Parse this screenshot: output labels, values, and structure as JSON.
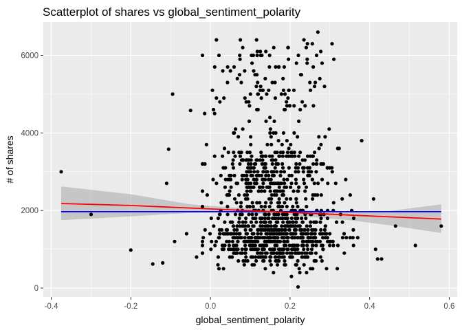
{
  "chart_data": {
    "type": "scatter",
    "title": "Scatterplot of shares vs global_sentiment_polarity",
    "xlabel": "global_sentiment_polarity",
    "ylabel": "# of shares",
    "xlim": [
      -0.42,
      0.62
    ],
    "ylim": [
      -230,
      6860
    ],
    "x_ticks": [
      -0.4,
      -0.2,
      0.0,
      0.2,
      0.4,
      0.6
    ],
    "x_tick_labels": [
      "-0.4",
      "-0.2",
      "0.0",
      "0.2",
      "0.4",
      "0.6"
    ],
    "y_ticks": [
      0,
      2000,
      4000,
      6000
    ],
    "y_tick_labels": [
      "0",
      "2000",
      "4000",
      "6000"
    ],
    "grid": true,
    "theme": {
      "panel_bg": "#ebebeb",
      "grid_major": "#ffffff",
      "point": "#000000"
    },
    "trend_lines": [
      {
        "method": "lm",
        "color": "#0000ff",
        "x": [
          -0.375,
          0.58
        ],
        "y": [
          1970,
          1970
        ]
      },
      {
        "method": "loess",
        "color": "#ff0000",
        "x": [
          -0.375,
          -0.2,
          0.0,
          0.2,
          0.4,
          0.58
        ],
        "y": [
          2180,
          2130,
          2040,
          1950,
          1860,
          1780
        ]
      }
    ],
    "confidence_band": {
      "color": "#999999",
      "x": [
        -0.375,
        -0.2,
        -0.05,
        0.05,
        0.2,
        0.35,
        0.45,
        0.58
      ],
      "lower": [
        1750,
        1850,
        1940,
        1950,
        1880,
        1750,
        1620,
        1420
      ],
      "upper": [
        2620,
        2420,
        2160,
        2080,
        2030,
        1980,
        1990,
        2160
      ]
    },
    "outliers": [
      {
        "x": -0.375,
        "y": 3000
      },
      {
        "x": -0.3,
        "y": 1900
      },
      {
        "x": -0.2,
        "y": 980
      },
      {
        "x": -0.145,
        "y": 620
      },
      {
        "x": -0.12,
        "y": 650
      },
      {
        "x": -0.11,
        "y": 2700
      },
      {
        "x": -0.105,
        "y": 3580
      },
      {
        "x": -0.09,
        "y": 1200
      },
      {
        "x": -0.095,
        "y": 5000
      },
      {
        "x": -0.06,
        "y": 1400
      },
      {
        "x": -0.05,
        "y": 4580
      },
      {
        "x": -0.035,
        "y": 800
      },
      {
        "x": -0.02,
        "y": 6000
      },
      {
        "x": -0.01,
        "y": 3700
      },
      {
        "x": 0.005,
        "y": 5100
      },
      {
        "x": 0.015,
        "y": 6400
      },
      {
        "x": 0.38,
        "y": 3800
      },
      {
        "x": 0.41,
        "y": 2300
      },
      {
        "x": 0.415,
        "y": 1000
      },
      {
        "x": 0.42,
        "y": 750
      },
      {
        "x": 0.43,
        "y": 750
      },
      {
        "x": 0.465,
        "y": 1600
      },
      {
        "x": 0.515,
        "y": 1100
      },
      {
        "x": 0.58,
        "y": 1600
      },
      {
        "x": 0.31,
        "y": 5900
      },
      {
        "x": 0.27,
        "y": 6600
      },
      {
        "x": 0.22,
        "y": 30
      },
      {
        "x": 0.34,
        "y": 2800
      },
      {
        "x": 0.355,
        "y": 2000
      },
      {
        "x": 0.36,
        "y": 1800
      },
      {
        "x": 0.305,
        "y": 3100
      },
      {
        "x": 0.32,
        "y": 3600
      }
    ],
    "cloud": {
      "count": 1100,
      "seed": 7,
      "x_center": 0.16,
      "x_sd": 0.075,
      "x_range": [
        -0.02,
        0.37
      ],
      "y_range": [
        80,
        6500
      ],
      "y_mode": 1250
    }
  }
}
